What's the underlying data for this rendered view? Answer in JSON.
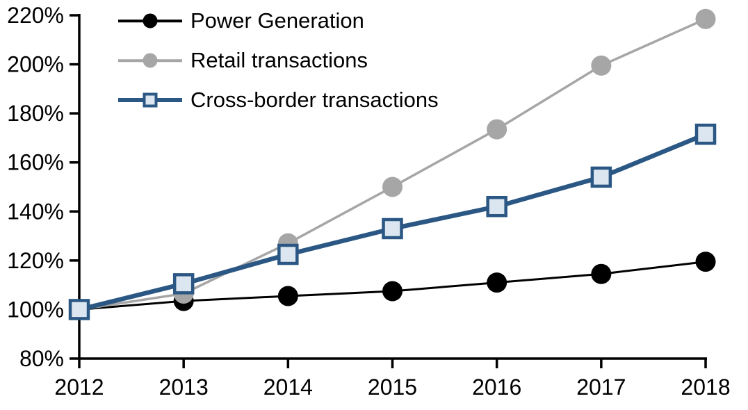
{
  "chart_data": {
    "type": "line",
    "title": "",
    "xlabel": "",
    "ylabel": "",
    "x": [
      2012,
      2013,
      2014,
      2015,
      2016,
      2017,
      2018
    ],
    "x_tick_labels": [
      "2012",
      "2013",
      "2014",
      "2015",
      "2016",
      "2017",
      "2018"
    ],
    "ylim": [
      80,
      220
    ],
    "y_tick_step": 20,
    "y_ticks": [
      80,
      100,
      120,
      140,
      160,
      180,
      200,
      220
    ],
    "y_tick_labels": [
      "80%",
      "100%",
      "120%",
      "140%",
      "160%",
      "180%",
      "200%",
      "220%"
    ],
    "grid": false,
    "legend_position": "top-left",
    "series": [
      {
        "name": "Power Generation",
        "values": [
          100,
          103.5,
          105.5,
          107.5,
          111,
          114.5,
          119.5
        ],
        "color": "#000000",
        "marker": "circle",
        "marker_fill": "#000000"
      },
      {
        "name": "Retail transactions",
        "values": [
          100,
          106.5,
          127,
          150,
          173.5,
          199.5,
          218.5
        ],
        "color": "#A6A6A6",
        "marker": "circle",
        "marker_fill": "#A6A6A6"
      },
      {
        "name": "Cross-border transactions",
        "values": [
          100,
          110.5,
          122.5,
          133,
          142,
          154,
          171.5
        ],
        "color": "#2A5783",
        "marker": "square",
        "marker_fill": "#DCE6F1"
      }
    ]
  },
  "colors": {
    "axis": "#000000",
    "tick_label": "#000000",
    "background": "#FFFFFF"
  }
}
